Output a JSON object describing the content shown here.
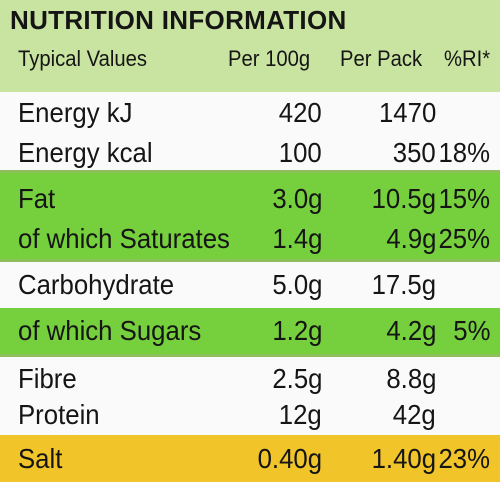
{
  "title": "NUTRITION INFORMATION",
  "columns": {
    "typical_values": "Typical Values",
    "per_100g": "Per 100g",
    "per_pack": "Per Pack",
    "ri": "%RI*"
  },
  "rows": [
    {
      "name": "Energy kJ",
      "per_100g": "420",
      "per_pack": "1470",
      "ri": "",
      "band": "white"
    },
    {
      "name": "Energy kcal",
      "per_100g": "100",
      "per_pack": "350",
      "ri": "18%",
      "band": "white"
    },
    {
      "name": "Fat",
      "per_100g": "3.0g",
      "per_pack": "10.5g",
      "ri": "15%",
      "band": "green"
    },
    {
      "name": "of which Saturates",
      "per_100g": "1.4g",
      "per_pack": "4.9g",
      "ri": "25%",
      "band": "green"
    },
    {
      "name": "Carbohydrate",
      "per_100g": "5.0g",
      "per_pack": "17.5g",
      "ri": "",
      "band": "white"
    },
    {
      "name": "of which Sugars",
      "per_100g": "1.2g",
      "per_pack": "4.2g",
      "ri": "5%",
      "band": "green"
    },
    {
      "name": "Fibre",
      "per_100g": "2.5g",
      "per_pack": "8.8g",
      "ri": "",
      "band": "white"
    },
    {
      "name": "Protein",
      "per_100g": "12g",
      "per_pack": "42g",
      "ri": "",
      "band": "white"
    },
    {
      "name": "Salt",
      "per_100g": "0.40g",
      "per_pack": "1.40g",
      "ri": "23%",
      "band": "yellow"
    }
  ],
  "colors": {
    "header_green": "#c9e3a0",
    "fat_green": "#76cf3d",
    "salt_yellow": "#f1c52a",
    "white": "#fafafa"
  }
}
